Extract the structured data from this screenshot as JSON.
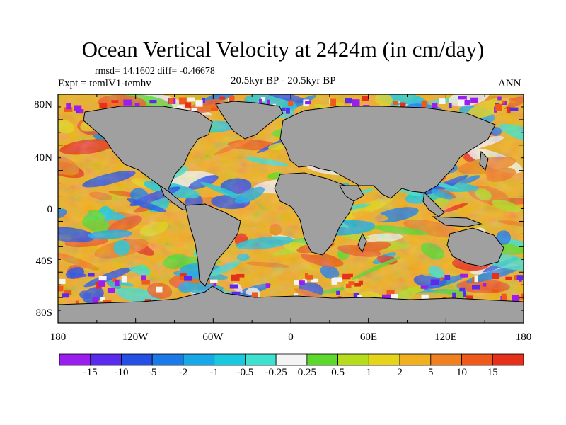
{
  "title": "Ocean Vertical Velocity at 2424m (in cm/day)",
  "stats": "rmsd= 14.1602  diff= -0.46678",
  "experiment": "Expt = temlV1-temhv",
  "period": "20.5kyr BP - 20.5kyr BP",
  "season": "ANN",
  "y_ticks": [
    "80N",
    "40N",
    "0",
    "40S",
    "80S"
  ],
  "x_ticks": [
    "180",
    "120W",
    "60W",
    "0",
    "60E",
    "120E",
    "180"
  ],
  "colorbar": {
    "labels": [
      "-15",
      "-10",
      "-5",
      "-2",
      "-1",
      "-0.5",
      "-0.25",
      "0.25",
      "0.5",
      "1",
      "2",
      "5",
      "10",
      "15"
    ],
    "colors": [
      "#9a1ef0",
      "#5a2bef",
      "#2550e6",
      "#1a7be8",
      "#17a8e8",
      "#1ac8e0",
      "#3ee0d0",
      "#f4f4f4",
      "#5cd92a",
      "#b6dc1e",
      "#e6d41a",
      "#f0b020",
      "#f08020",
      "#ef5a1c",
      "#e6301a"
    ]
  },
  "map": {
    "land_color": "#a0a0a0",
    "high_lat_artifacts": "purple and red blocky patches along the Arctic and Antarctic margins"
  }
}
